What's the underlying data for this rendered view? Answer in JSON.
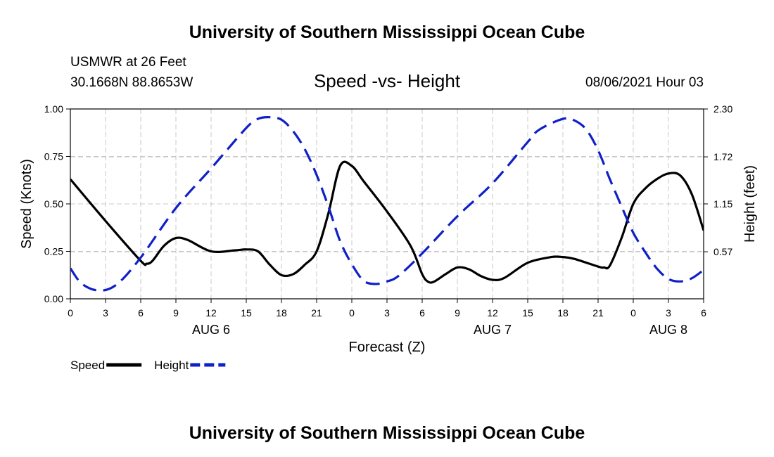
{
  "header": {
    "title_top": "University of Southern Mississippi Ocean Cube",
    "title_bottom": "University of Southern Mississippi Ocean Cube",
    "station": "USMWR at 26 Feet",
    "coords": "30.1668N  88.8653W",
    "datetime": "08/06/2021 Hour 03"
  },
  "chart_data": {
    "type": "line",
    "title": "Speed -vs- Height",
    "xlabel": "Forecast (Z)",
    "ylabel_left": "Speed (Knots)",
    "ylabel_right": "Height (feet)",
    "xlim": [
      0,
      54
    ],
    "ylim_left": [
      0,
      1.0
    ],
    "ylim_right": [
      -0.0,
      2.3
    ],
    "grid": true,
    "x_ticks": [
      0,
      3,
      6,
      9,
      12,
      15,
      18,
      21,
      24,
      27,
      30,
      33,
      36,
      39,
      42,
      45,
      48,
      51,
      54
    ],
    "x_tick_labels": [
      "0",
      "3",
      "6",
      "9",
      "12",
      "15",
      "18",
      "21",
      "0",
      "3",
      "6",
      "9",
      "12",
      "15",
      "18",
      "21",
      "0",
      "3",
      "6"
    ],
    "y_left_ticks": [
      0,
      0.25,
      0.5,
      0.75,
      1.0
    ],
    "y_left_tick_labels": [
      "0.00",
      "0.25",
      "0.50",
      "0.75",
      "1.00"
    ],
    "y_right_ticks": [
      0.57,
      1.15,
      1.72,
      2.3
    ],
    "y_right_tick_labels": [
      "0.57",
      "1.15",
      "1.72",
      "2.30"
    ],
    "date_labels": [
      {
        "label": "AUG 6",
        "x": 12
      },
      {
        "label": "AUG 7",
        "x": 36
      },
      {
        "label": "AUG 8",
        "x": 51
      }
    ],
    "series": [
      {
        "name": "Speed",
        "axis": "left",
        "color": "#000000",
        "style": "solid",
        "x": [
          0,
          3,
          6,
          6.5,
          7,
          8,
          9,
          10,
          12,
          14,
          15,
          16,
          17,
          18,
          19,
          20,
          21,
          22,
          23,
          24,
          25,
          27,
          29,
          30,
          30.5,
          31,
          32,
          33,
          34,
          35,
          36,
          37,
          39,
          41,
          42,
          43,
          45,
          45.5,
          46,
          47,
          48,
          49,
          50,
          51,
          52,
          53,
          54
        ],
        "values": [
          0.63,
          0.41,
          0.2,
          0.185,
          0.2,
          0.28,
          0.32,
          0.31,
          0.25,
          0.255,
          0.26,
          0.25,
          0.18,
          0.125,
          0.13,
          0.18,
          0.25,
          0.45,
          0.7,
          0.7,
          0.62,
          0.46,
          0.28,
          0.13,
          0.09,
          0.09,
          0.13,
          0.165,
          0.155,
          0.12,
          0.1,
          0.11,
          0.19,
          0.22,
          0.22,
          0.21,
          0.17,
          0.165,
          0.175,
          0.32,
          0.5,
          0.58,
          0.63,
          0.66,
          0.65,
          0.55,
          0.36
        ]
      },
      {
        "name": "Height",
        "axis": "right",
        "color": "#1020c8",
        "style": "dashed",
        "x": [
          0,
          1,
          2.5,
          4,
          6,
          9,
          12,
          15,
          16,
          17,
          18,
          19,
          20,
          21,
          22,
          23,
          24,
          25,
          26,
          27,
          28,
          30,
          33,
          36,
          39,
          40,
          42,
          43,
          44,
          45,
          46,
          47,
          48,
          49,
          50,
          51,
          52,
          53,
          54
        ],
        "values": [
          0.37,
          0.18,
          0.1,
          0.18,
          0.5,
          1.1,
          1.58,
          2.07,
          2.18,
          2.2,
          2.17,
          2.03,
          1.81,
          1.5,
          1.12,
          0.7,
          0.42,
          0.22,
          0.18,
          0.21,
          0.28,
          0.55,
          1.0,
          1.4,
          1.9,
          2.05,
          2.18,
          2.16,
          2.05,
          1.8,
          1.45,
          1.12,
          0.8,
          0.57,
          0.37,
          0.24,
          0.21,
          0.25,
          0.35
        ]
      }
    ],
    "legend": [
      {
        "label": "Speed",
        "color": "#000000",
        "style": "solid"
      },
      {
        "label": "Height",
        "color": "#1020c8",
        "style": "dashed"
      }
    ],
    "legend_position": "bottom-left"
  }
}
